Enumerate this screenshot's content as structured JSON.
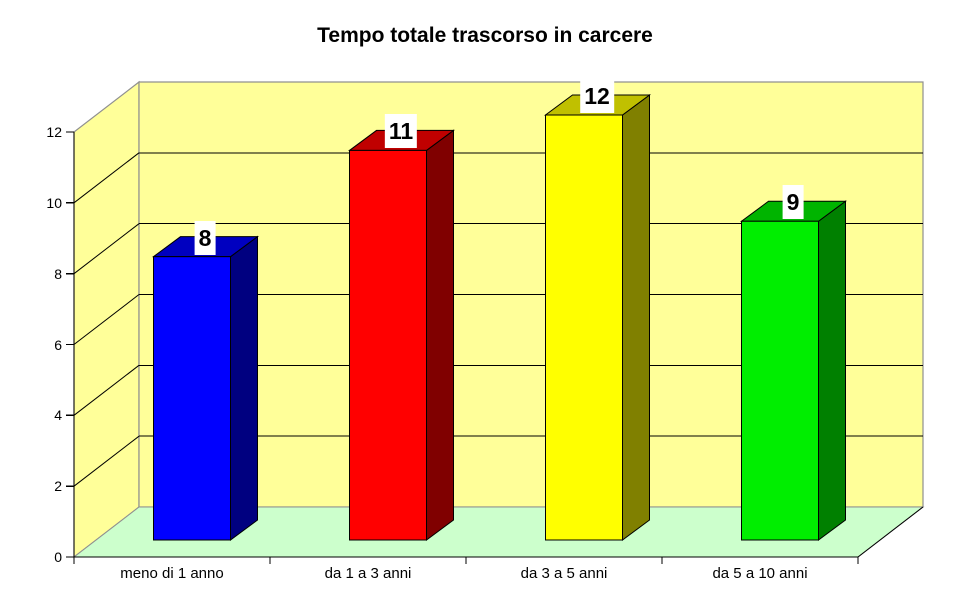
{
  "title": "Tempo totale trascorso in carcere",
  "chart_data": {
    "type": "bar",
    "projection": "3d",
    "title": "Tempo totale trascorso in carcere",
    "categories": [
      "meno di 1 anno",
      "da 1 a 3 anni",
      "da 3 a 5 anni",
      "da 5 a 10 anni"
    ],
    "values": [
      8,
      11,
      12,
      9
    ],
    "data_labels": [
      "8",
      "11",
      "12",
      "9"
    ],
    "xlabel": "",
    "ylabel": "",
    "ylim": [
      0,
      12
    ],
    "yticks": [
      0,
      2,
      4,
      6,
      8,
      10,
      12
    ],
    "grid": "on",
    "legend": "none",
    "colors": {
      "background": "#FFFFFF",
      "wall": "#FFFF99",
      "floor": "#CCFFCC",
      "wall_border": "#909090",
      "gridline": "#000000",
      "axis": "#000000",
      "label_box_bg": "#FFFFFF",
      "label_text": "#000000",
      "series": [
        {
          "name": "meno di 1 anno",
          "front": "#0000FF",
          "side": "#000080",
          "top": "#0000C0"
        },
        {
          "name": "da 1 a 3 anni",
          "front": "#FF0000",
          "side": "#800000",
          "top": "#C00000"
        },
        {
          "name": "da 3 a 5 anni",
          "front": "#FFFF00",
          "side": "#808000",
          "top": "#C0C000"
        },
        {
          "name": "da 5 a 10 anni",
          "front": "#00EE00",
          "side": "#008000",
          "top": "#00B400"
        }
      ]
    }
  }
}
